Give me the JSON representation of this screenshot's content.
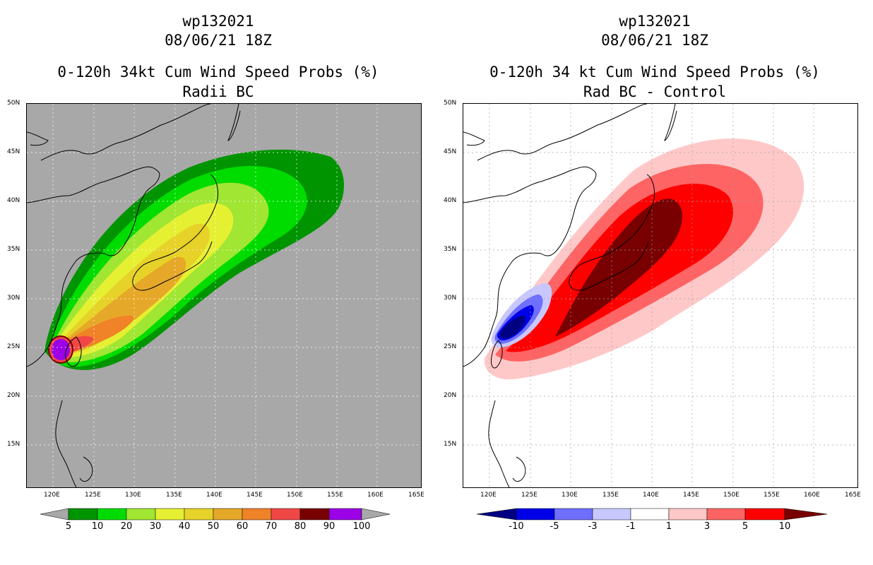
{
  "left": {
    "storm_id": "wp132021",
    "datetime": "08/06/21 18Z",
    "title": "0-120h 34kt Cum Wind Speed Probs (%)",
    "subtitle": "Radii BC",
    "colorbar_labels": [
      "5",
      "10",
      "20",
      "30",
      "40",
      "50",
      "60",
      "70",
      "80",
      "90",
      "100"
    ],
    "colorbar_colors": [
      "#a8a8a8",
      "#009400",
      "#00dc00",
      "#a0e632",
      "#e6f032",
      "#e6d228",
      "#e6a828",
      "#f08228",
      "#f04646",
      "#780000",
      "#9b00e6",
      "#a8a8a8"
    ]
  },
  "right": {
    "storm_id": "wp132021",
    "datetime": "08/06/21 18Z",
    "title": "0-120h 34 kt Cum Wind Speed Probs (%)",
    "subtitle": "Rad BC - Control",
    "colorbar_labels": [
      "-10",
      "-5",
      "-3",
      "-1",
      "1",
      "3",
      "5",
      "10"
    ],
    "colorbar_colors": [
      "#000082",
      "#0000e6",
      "#6e6eff",
      "#c8c8ff",
      "#ffffff",
      "#ffc8c8",
      "#ff6464",
      "#ff0000",
      "#780000"
    ]
  },
  "axes": {
    "lon_ticks": [
      "120E",
      "125E",
      "130E",
      "135E",
      "140E",
      "145E",
      "150E",
      "155E",
      "160E",
      "165E"
    ],
    "lat_ticks": [
      "50N",
      "45N",
      "40N",
      "35N",
      "30N",
      "25N",
      "20N",
      "15N"
    ]
  }
}
